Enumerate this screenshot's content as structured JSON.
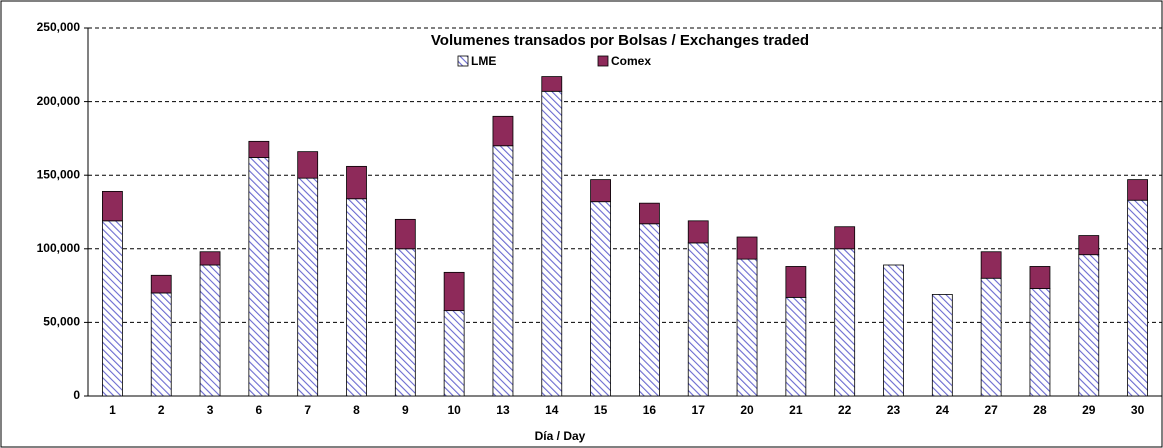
{
  "chart_data": {
    "type": "stacked_bar",
    "title": "Volumenes transados por Bolsas / Exchanges traded",
    "x_label": "Día / Day",
    "categories": [
      "1",
      "2",
      "3",
      "6",
      "7",
      "8",
      "9",
      "10",
      "13",
      "14",
      "15",
      "16",
      "17",
      "20",
      "21",
      "22",
      "23",
      "24",
      "27",
      "28",
      "29",
      "30"
    ],
    "series": [
      {
        "name": "LME",
        "color": "#6a6ad0",
        "pattern": "hatch",
        "values": [
          119000,
          70000,
          89000,
          162000,
          148000,
          134000,
          100000,
          58000,
          170000,
          207000,
          132000,
          117000,
          104000,
          93000,
          67000,
          100000,
          89000,
          69000,
          80000,
          73000,
          96000,
          133000
        ]
      },
      {
        "name": "Comex",
        "color": "#8e2a5a",
        "values": [
          20000,
          12000,
          9000,
          11000,
          18000,
          22000,
          20000,
          26000,
          20000,
          10000,
          15000,
          14000,
          15000,
          15000,
          21000,
          15000,
          0,
          0,
          18000,
          15000,
          13000,
          14000
        ]
      }
    ],
    "ylim": [
      0,
      250000
    ],
    "yticks": [
      0,
      {
        "value": 50000,
        "label": "50,000"
      },
      {
        "value": 100000,
        "label": "100,000"
      },
      {
        "value": 150000,
        "label": "150,000"
      },
      {
        "value": 200000,
        "label": "200,000"
      },
      {
        "value": 250000,
        "label": "250,000"
      }
    ],
    "grid": true,
    "legend": "top"
  }
}
